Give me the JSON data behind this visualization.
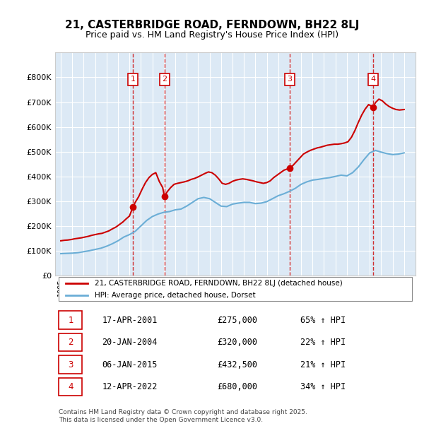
{
  "title": "21, CASTERBRIDGE ROAD, FERNDOWN, BH22 8LJ",
  "subtitle": "Price paid vs. HM Land Registry's House Price Index (HPI)",
  "background_color": "#ffffff",
  "plot_bg_color": "#dce9f5",
  "grid_color": "#ffffff",
  "ylim": [
    0,
    900000
  ],
  "yticks": [
    0,
    100000,
    200000,
    300000,
    400000,
    500000,
    600000,
    700000,
    800000
  ],
  "ytick_labels": [
    "£0",
    "£100K",
    "£200K",
    "£300K",
    "£400K",
    "£500K",
    "£600K",
    "£700K",
    "£800K"
  ],
  "xlim_start": 1994.5,
  "xlim_end": 2026.0,
  "sale_dates": [
    2001.29,
    2004.05,
    2015.01,
    2022.28
  ],
  "sale_prices": [
    275000,
    320000,
    432500,
    680000
  ],
  "sale_labels": [
    "1",
    "2",
    "3",
    "4"
  ],
  "hpi_line_color": "#6baed6",
  "price_line_color": "#cc0000",
  "vline_color": "#cc0000",
  "sale_marker_color": "#cc0000",
  "hpi_years": [
    1995.0,
    1995.5,
    1996.0,
    1996.5,
    1997.0,
    1997.5,
    1998.0,
    1998.5,
    1999.0,
    1999.5,
    2000.0,
    2000.5,
    2001.0,
    2001.5,
    2002.0,
    2002.5,
    2003.0,
    2003.5,
    2004.0,
    2004.5,
    2005.0,
    2005.5,
    2006.0,
    2006.5,
    2007.0,
    2007.5,
    2008.0,
    2008.5,
    2009.0,
    2009.5,
    2010.0,
    2010.5,
    2011.0,
    2011.5,
    2012.0,
    2012.5,
    2013.0,
    2013.5,
    2014.0,
    2014.5,
    2015.0,
    2015.5,
    2016.0,
    2016.5,
    2017.0,
    2017.5,
    2018.0,
    2018.5,
    2019.0,
    2019.5,
    2020.0,
    2020.5,
    2021.0,
    2021.5,
    2022.0,
    2022.5,
    2023.0,
    2023.5,
    2024.0,
    2024.5,
    2025.0
  ],
  "hpi_values": [
    88000,
    89000,
    90000,
    92000,
    96000,
    100000,
    105000,
    110000,
    118000,
    128000,
    140000,
    155000,
    165000,
    178000,
    200000,
    222000,
    238000,
    248000,
    255000,
    258000,
    265000,
    268000,
    280000,
    295000,
    310000,
    315000,
    310000,
    295000,
    280000,
    278000,
    288000,
    292000,
    295000,
    295000,
    290000,
    292000,
    298000,
    310000,
    322000,
    330000,
    340000,
    352000,
    368000,
    378000,
    385000,
    388000,
    392000,
    395000,
    400000,
    405000,
    402000,
    415000,
    438000,
    468000,
    495000,
    505000,
    498000,
    492000,
    488000,
    490000,
    495000
  ],
  "price_paid_years": [
    1995.0,
    1995.3,
    1995.6,
    1995.9,
    1996.2,
    1996.5,
    1996.8,
    1997.1,
    1997.4,
    1997.7,
    1998.0,
    1998.3,
    1998.6,
    1998.9,
    1999.2,
    1999.5,
    1999.8,
    2000.1,
    2000.4,
    2000.7,
    2001.0,
    2001.29,
    2001.5,
    2001.8,
    2002.1,
    2002.4,
    2002.7,
    2003.0,
    2003.3,
    2003.6,
    2003.9,
    2004.05,
    2004.3,
    2004.6,
    2004.9,
    2005.2,
    2005.5,
    2005.8,
    2006.1,
    2006.4,
    2006.7,
    2007.0,
    2007.3,
    2007.6,
    2007.9,
    2008.2,
    2008.5,
    2008.8,
    2009.1,
    2009.4,
    2009.7,
    2010.0,
    2010.3,
    2010.6,
    2010.9,
    2011.2,
    2011.5,
    2011.8,
    2012.1,
    2012.4,
    2012.7,
    2013.0,
    2013.3,
    2013.6,
    2013.9,
    2014.2,
    2014.5,
    2014.8,
    2015.01,
    2015.3,
    2015.6,
    2015.9,
    2016.2,
    2016.5,
    2016.8,
    2017.1,
    2017.4,
    2017.7,
    2018.0,
    2018.3,
    2018.6,
    2018.9,
    2019.2,
    2019.5,
    2019.8,
    2020.1,
    2020.4,
    2020.7,
    2021.0,
    2021.3,
    2021.6,
    2021.9,
    2022.28,
    2022.5,
    2022.8,
    2023.1,
    2023.4,
    2023.7,
    2024.0,
    2024.3,
    2024.6,
    2025.0
  ],
  "price_paid_values": [
    140000,
    142000,
    143000,
    145000,
    148000,
    150000,
    152000,
    155000,
    158000,
    162000,
    165000,
    168000,
    170000,
    175000,
    180000,
    188000,
    195000,
    205000,
    215000,
    228000,
    240000,
    275000,
    295000,
    318000,
    348000,
    375000,
    395000,
    408000,
    415000,
    380000,
    355000,
    320000,
    338000,
    355000,
    368000,
    372000,
    375000,
    378000,
    382000,
    388000,
    392000,
    398000,
    405000,
    412000,
    418000,
    415000,
    405000,
    390000,
    372000,
    368000,
    372000,
    380000,
    385000,
    388000,
    390000,
    388000,
    385000,
    382000,
    378000,
    375000,
    372000,
    375000,
    382000,
    395000,
    405000,
    415000,
    425000,
    430000,
    432500,
    445000,
    460000,
    475000,
    490000,
    498000,
    505000,
    510000,
    515000,
    518000,
    522000,
    526000,
    528000,
    530000,
    530000,
    532000,
    535000,
    540000,
    558000,
    585000,
    618000,
    648000,
    672000,
    690000,
    680000,
    698000,
    712000,
    705000,
    692000,
    682000,
    675000,
    670000,
    668000,
    670000
  ],
  "table_entries": [
    {
      "num": "1",
      "date": "17-APR-2001",
      "price": "£275,000",
      "hpi": "65% ↑ HPI"
    },
    {
      "num": "2",
      "date": "20-JAN-2004",
      "price": "£320,000",
      "hpi": "22% ↑ HPI"
    },
    {
      "num": "3",
      "date": "06-JAN-2015",
      "price": "£432,500",
      "hpi": "21% ↑ HPI"
    },
    {
      "num": "4",
      "date": "12-APR-2022",
      "price": "£680,000",
      "hpi": "34% ↑ HPI"
    }
  ],
  "footer_text": "Contains HM Land Registry data © Crown copyright and database right 2025.\nThis data is licensed under the Open Government Licence v3.0.",
  "legend_entries": [
    "21, CASTERBRIDGE ROAD, FERNDOWN, BH22 8LJ (detached house)",
    "HPI: Average price, detached house, Dorset"
  ]
}
